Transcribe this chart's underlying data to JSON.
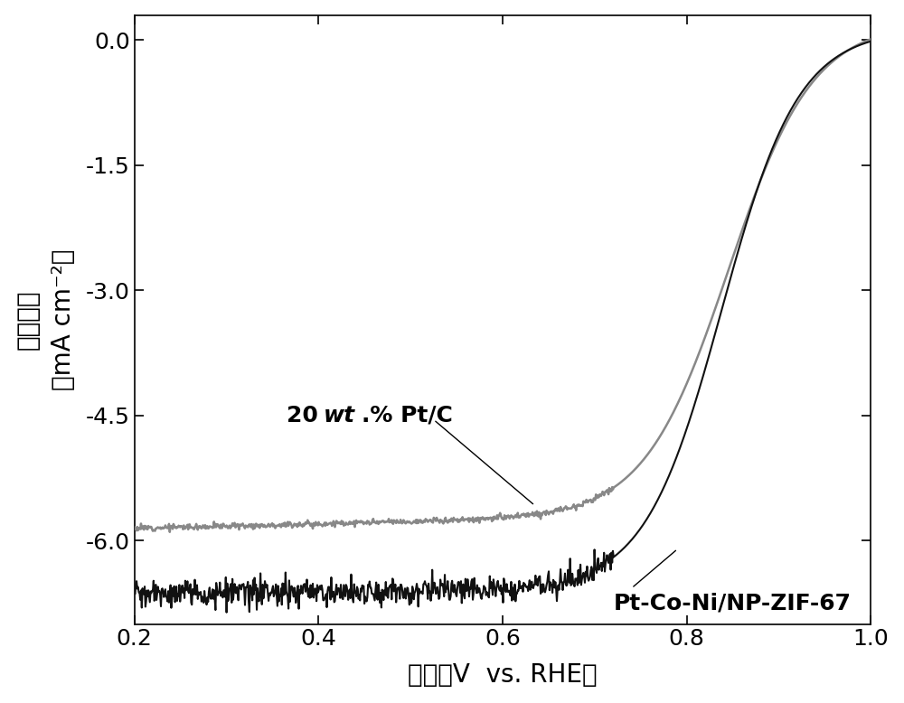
{
  "xlabel": "电位（V  vs. RHE）",
  "ylabel_line1": "电流密度",
  "ylabel_line2": "（mA cm⁻²）",
  "xlim": [
    0.2,
    1.0
  ],
  "ylim": [
    -7.0,
    0.3
  ],
  "yticks": [
    0.0,
    -1.5,
    -3.0,
    -4.5,
    -6.0
  ],
  "xticks": [
    0.2,
    0.4,
    0.6,
    0.8,
    1.0
  ],
  "curve1_color": "#888888",
  "curve2_color": "#111111",
  "annotation1_text_pre": "20 ",
  "annotation1_text_italic": "wt",
  "annotation1_text_post": ".% Pt/C",
  "annotation2_text": "Pt-Co-Ni/NP-ZIF-67",
  "background_color": "#ffffff",
  "linewidth1": 1.8,
  "linewidth2": 1.5,
  "fontsize_label": 20,
  "fontsize_tick": 18,
  "fontsize_annot": 18
}
